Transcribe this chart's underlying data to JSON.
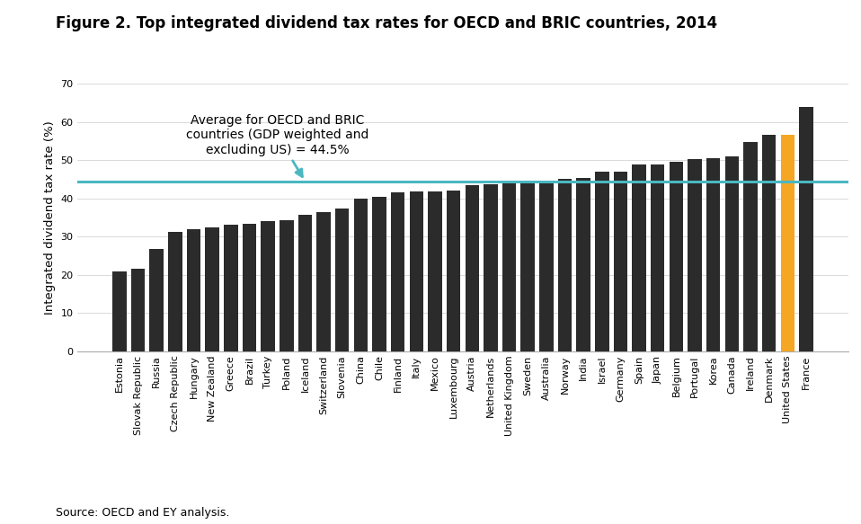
{
  "title": "Figure 2. Top integrated dividend tax rates for OECD and BRIC countries, 2014",
  "ylabel": "Integrated dividend tax rate (%)",
  "source": "Source: OECD and EY analysis.",
  "average_line": 44.5,
  "annotation_text": "Average for OECD and BRIC\ncountries (GDP weighted and\nexcluding US) = 44.5%",
  "ylim": [
    0,
    70
  ],
  "yticks": [
    0,
    10,
    20,
    30,
    40,
    50,
    60,
    70
  ],
  "categories": [
    "Estonia",
    "Slovak Republic",
    "Russia",
    "Czech Republic",
    "Hungary",
    "New Zealand",
    "Greece",
    "Brazil",
    "Turkey",
    "Poland",
    "Iceland",
    "Switzerland",
    "Slovenia",
    "China",
    "Chile",
    "Finland",
    "Italy",
    "Mexico",
    "Luxembourg",
    "Austria",
    "Netherlands",
    "United Kingdom",
    "Sweden",
    "Australia",
    "Norway",
    "India",
    "Israel",
    "Germany",
    "Spain",
    "Japan",
    "Belgium",
    "Portugal",
    "Korea",
    "Canada",
    "Ireland",
    "Denmark",
    "United States",
    "France"
  ],
  "values": [
    20.9,
    21.6,
    26.8,
    31.2,
    31.9,
    32.3,
    33.0,
    33.3,
    34.0,
    34.2,
    35.8,
    36.5,
    37.3,
    40.0,
    40.3,
    41.6,
    41.7,
    41.7,
    42.1,
    43.4,
    43.8,
    44.0,
    44.3,
    44.6,
    45.0,
    45.3,
    46.9,
    47.0,
    48.8,
    48.8,
    49.7,
    50.4,
    50.6,
    51.0,
    54.7,
    56.6,
    56.6,
    64.0
  ],
  "bar_color_default": "#2b2b2b",
  "bar_color_highlight": "#f5a623",
  "highlight_index": 36,
  "avg_line_color": "#4ab8c1",
  "background_color": "#ffffff",
  "title_fontsize": 12,
  "ylabel_fontsize": 9.5,
  "tick_fontsize": 8,
  "source_fontsize": 9,
  "annotation_fontsize": 10
}
